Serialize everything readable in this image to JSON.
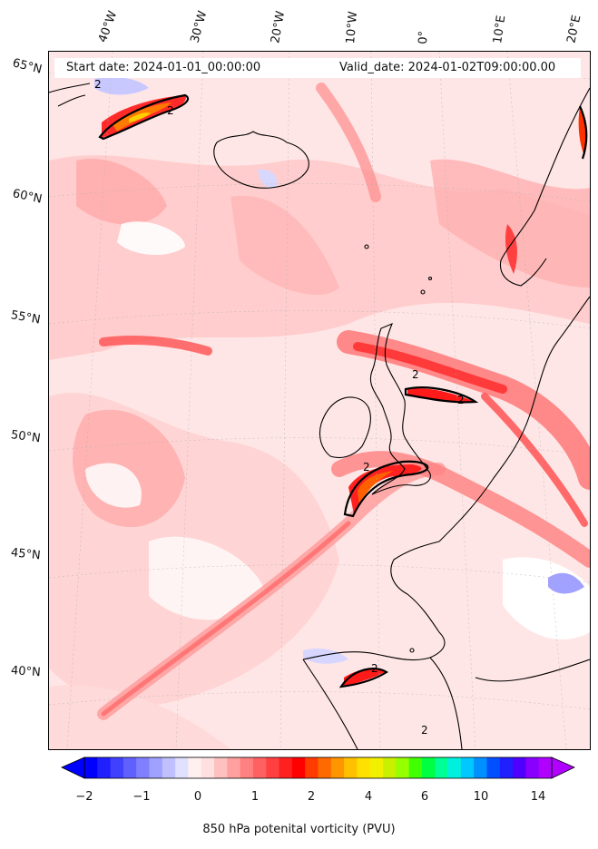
{
  "header": {
    "start_date": "Start date: 2024-01-01_00:00:00",
    "valid_date": "Valid_date: 2024-01-02T09:00:00.00"
  },
  "map": {
    "projection": "Lambert conformal",
    "coastlines": true,
    "graticule": true,
    "contour_level_label": "2",
    "latitude_labels": [
      "65°N",
      "60°N",
      "55°N",
      "50°N",
      "45°N",
      "40°N"
    ],
    "longitude_labels": [
      "40°W",
      "30°W",
      "20°W",
      "10°W",
      "0°",
      "10°E",
      "20°E"
    ]
  },
  "colorbar": {
    "label": "850 hPa potenital vorticity (PVU)",
    "tick_labels": [
      "−2",
      "−1",
      "0",
      "1",
      "2",
      "4",
      "6",
      "10",
      "14"
    ],
    "colors": [
      "#0000ff",
      "#2020ff",
      "#4040ff",
      "#6060ff",
      "#8080ff",
      "#a0a0ff",
      "#c0c0ff",
      "#e0e0ff",
      "#fff0f0",
      "#ffe0e0",
      "#ffc0c0",
      "#ffa0a0",
      "#ff8080",
      "#ff6060",
      "#ff4040",
      "#ff2020",
      "#ff0000",
      "#ff3c00",
      "#ff6a00",
      "#ff9600",
      "#ffc000",
      "#ffe000",
      "#f0f000",
      "#c8f000",
      "#96ff00",
      "#40ff00",
      "#00ff40",
      "#00ff96",
      "#00f0e0",
      "#00c8ff",
      "#0090ff",
      "#0050ff",
      "#2020ff",
      "#5000ff",
      "#8a00ff",
      "#b000ff"
    ],
    "extend": "both"
  }
}
